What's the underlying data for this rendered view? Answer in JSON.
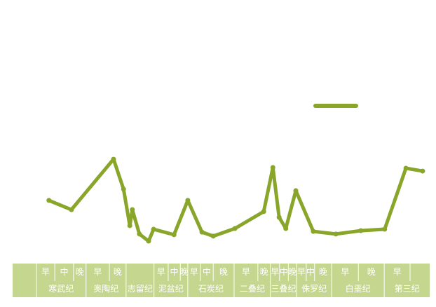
{
  "chart_data": {
    "type": "line",
    "x": [
      8.7,
      14.1,
      24.2,
      26.6,
      28.1,
      28.7,
      30.4,
      32.6,
      33.8,
      38.7,
      42.0,
      45.4,
      48.1,
      53.3,
      60.2,
      62.4,
      63.9,
      65.5,
      67.9,
      72.1,
      77.5,
      83.5,
      89.2,
      94.3,
      98.3
    ],
    "series": [
      {
        "color": "#8aa62a",
        "values": [
          26.5,
          22.6,
          43.8,
          31.2,
          15.9,
          22.6,
          12.4,
          9.4,
          14.4,
          12.1,
          26.5,
          13.2,
          11.5,
          14.7,
          21.8,
          40.3,
          19.4,
          14.7,
          30.6,
          13.5,
          12.4,
          13.8,
          14.4,
          40.0,
          38.8
        ]
      }
    ],
    "xlim": [
      0,
      100
    ],
    "ylim": [
      0,
      100
    ],
    "x_groups": [
      {
        "name": "寒武纪",
        "start": 5.7,
        "end": 17.6,
        "epochs": [
          {
            "label": "早",
            "start": 5.7,
            "end": 10.1
          },
          {
            "label": "中",
            "start": 10.1,
            "end": 14.6
          },
          {
            "label": "晚",
            "start": 14.6,
            "end": 17.6
          }
        ]
      },
      {
        "name": "奥陶纪",
        "start": 17.6,
        "end": 27.2,
        "epochs": [
          {
            "label": "早",
            "start": 17.6,
            "end": 23.2
          },
          {
            "label": "晚",
            "start": 23.2,
            "end": 27.2
          }
        ]
      },
      {
        "name": "志留纪",
        "start": 27.2,
        "end": 33.9,
        "epochs": []
      },
      {
        "name": "泥盆纪",
        "start": 33.9,
        "end": 42.0,
        "epochs": [
          {
            "label": "早",
            "start": 33.9,
            "end": 37.3
          },
          {
            "label": "中",
            "start": 37.3,
            "end": 40.2
          },
          {
            "label": "晚",
            "start": 40.2,
            "end": 42.0
          }
        ]
      },
      {
        "name": "石炭纪",
        "start": 42.0,
        "end": 53.1,
        "epochs": [
          {
            "label": "早",
            "start": 42.0,
            "end": 45.0
          },
          {
            "label": "中",
            "start": 45.0,
            "end": 48.1
          },
          {
            "label": "晚",
            "start": 48.1,
            "end": 53.1
          }
        ]
      },
      {
        "name": "二叠纪",
        "start": 53.1,
        "end": 61.8,
        "epochs": [
          {
            "label": "早",
            "start": 53.1,
            "end": 58.8
          },
          {
            "label": "晚",
            "start": 58.8,
            "end": 61.8
          }
        ]
      },
      {
        "name": "三叠纪",
        "start": 61.8,
        "end": 68.1,
        "epochs": [
          {
            "label": "早",
            "start": 61.8,
            "end": 64.0
          },
          {
            "label": "中",
            "start": 64.0,
            "end": 66.1
          },
          {
            "label": "晚",
            "start": 66.1,
            "end": 68.1
          }
        ]
      },
      {
        "name": "侏罗纪",
        "start": 68.1,
        "end": 76.5,
        "epochs": [
          {
            "label": "早",
            "start": 68.1,
            "end": 70.4
          },
          {
            "label": "中",
            "start": 70.4,
            "end": 72.4
          },
          {
            "label": "晚",
            "start": 72.4,
            "end": 76.5
          }
        ]
      },
      {
        "name": "白垩纪",
        "start": 76.5,
        "end": 89.1,
        "epochs": [
          {
            "label": "早",
            "start": 76.5,
            "end": 82.9
          },
          {
            "label": "晚",
            "start": 82.9,
            "end": 89.1
          }
        ]
      },
      {
        "name": "第三纪",
        "start": 89.1,
        "end": 100,
        "epochs": [
          {
            "label": "早",
            "start": 89.1,
            "end": 95.3
          },
          {
            "label": null,
            "start": 95.3,
            "end": 100
          }
        ]
      }
    ],
    "axis_color": "#c5d68f",
    "legend": "upper-right"
  }
}
